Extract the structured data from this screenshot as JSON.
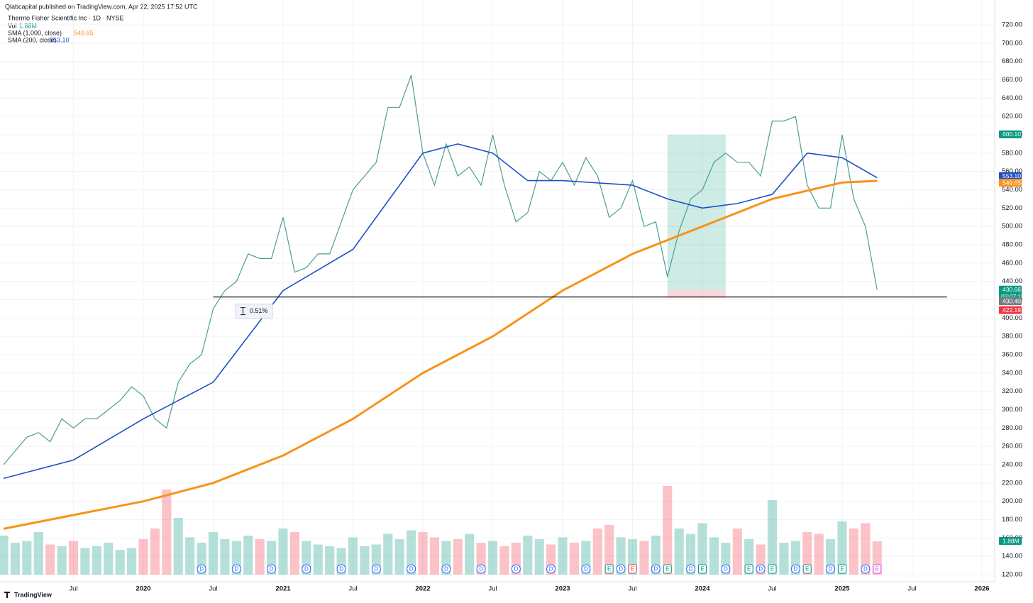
{
  "chart_data": {
    "type": "line",
    "published": "Qlabcapital published on TradingView.com, Apr 22, 2025 17:52 UTC",
    "title": "Thermo Fisher Scientific Inc · 1D · NYSE",
    "footer": "TradingView",
    "x": [
      "2019-01",
      "2019-02",
      "2019-03",
      "2019-04",
      "2019-05",
      "2019-06",
      "2019-07",
      "2019-08",
      "2019-09",
      "2019-10",
      "2019-11",
      "2019-12",
      "2020-01",
      "2020-02",
      "2020-03",
      "2020-04",
      "2020-05",
      "2020-06",
      "2020-07",
      "2020-08",
      "2020-09",
      "2020-10",
      "2020-11",
      "2020-12",
      "2021-01",
      "2021-02",
      "2021-03",
      "2021-04",
      "2021-05",
      "2021-06",
      "2021-07",
      "2021-08",
      "2021-09",
      "2021-10",
      "2021-11",
      "2021-12",
      "2022-01",
      "2022-02",
      "2022-03",
      "2022-04",
      "2022-05",
      "2022-06",
      "2022-07",
      "2022-08",
      "2022-09",
      "2022-10",
      "2022-11",
      "2022-12",
      "2023-01",
      "2023-02",
      "2023-03",
      "2023-04",
      "2023-05",
      "2023-06",
      "2023-07",
      "2023-08",
      "2023-09",
      "2023-10",
      "2023-11",
      "2023-12",
      "2024-01",
      "2024-02",
      "2024-03",
      "2024-04",
      "2024-05",
      "2024-06",
      "2024-07",
      "2024-08",
      "2024-09",
      "2024-10",
      "2024-11",
      "2024-12",
      "2025-01",
      "2025-02",
      "2025-03",
      "2025-04"
    ],
    "series": [
      {
        "name": "Thermo Fisher Scientific Inc · 1D · NYSE",
        "color": "#4a9e92",
        "values": [
          240,
          255,
          270,
          275,
          265,
          290,
          280,
          290,
          290,
          300,
          310,
          325,
          315,
          290,
          280,
          330,
          350,
          360,
          410,
          430,
          440,
          470,
          465,
          465,
          510,
          450,
          455,
          470,
          470,
          505,
          540,
          555,
          570,
          630,
          630,
          665,
          580,
          545,
          590,
          555,
          565,
          545,
          600,
          545,
          505,
          515,
          560,
          550,
          570,
          545,
          575,
          555,
          510,
          520,
          550,
          500,
          505,
          445,
          495,
          530,
          540,
          570,
          580,
          570,
          570,
          555,
          615,
          615,
          620,
          545,
          520,
          520,
          600,
          530,
          500,
          430.66
        ]
      },
      {
        "name": "SMA (1,000, close)",
        "color": "#f7931a",
        "price_label": "549.65",
        "x": [
          "2019-01",
          "2019-07",
          "2020-01",
          "2020-07",
          "2021-01",
          "2021-07",
          "2022-01",
          "2022-07",
          "2023-01",
          "2023-07",
          "2024-01",
          "2024-07",
          "2025-01",
          "2025-04"
        ],
        "values": [
          170,
          185,
          200,
          220,
          250,
          290,
          340,
          380,
          430,
          470,
          500,
          530,
          548,
          549.65
        ]
      },
      {
        "name": "SMA (200, close)",
        "color": "#1e4fc7",
        "price_label": "553.10",
        "x": [
          "2019-01",
          "2019-07",
          "2020-01",
          "2020-07",
          "2021-01",
          "2021-07",
          "2022-01",
          "2022-04",
          "2022-07",
          "2022-10",
          "2023-01",
          "2023-07",
          "2023-10",
          "2024-01",
          "2024-04",
          "2024-07",
          "2024-10",
          "2025-01",
          "2025-04"
        ],
        "values": [
          225,
          245,
          290,
          330,
          430,
          475,
          580,
          590,
          580,
          550,
          550,
          545,
          530,
          520,
          525,
          535,
          580,
          575,
          553.1
        ]
      }
    ],
    "volume": {
      "name": "Vol",
      "label": "1.88M",
      "values": [
        2.2,
        1.8,
        1.9,
        2.4,
        1.7,
        1.6,
        1.9,
        1.5,
        1.6,
        1.8,
        1.4,
        1.5,
        2.0,
        2.6,
        4.8,
        3.2,
        2.1,
        1.8,
        2.4,
        2.0,
        1.9,
        2.2,
        2.0,
        1.9,
        2.6,
        2.4,
        1.9,
        1.7,
        1.6,
        1.5,
        2.1,
        1.6,
        1.7,
        2.3,
        2.0,
        2.5,
        2.4,
        2.1,
        1.9,
        2.0,
        2.3,
        1.8,
        1.9,
        1.6,
        1.8,
        2.2,
        2.0,
        1.7,
        2.1,
        1.8,
        1.9,
        2.6,
        2.8,
        2.1,
        2.0,
        1.9,
        2.2,
        5.0,
        2.6,
        2.3,
        2.9,
        2.1,
        1.8,
        2.6,
        2.0,
        1.7,
        4.2,
        1.8,
        1.9,
        2.4,
        2.3,
        2.0,
        3.0,
        2.6,
        2.9,
        1.88
      ]
    },
    "current_countdown": "02:07:19",
    "position": {
      "start": "2023-10",
      "end": "2024-03",
      "entry": 430.4,
      "entry_label": "430.40",
      "target": 600.1,
      "target_label": "600.10",
      "stop": 422.19,
      "stop_label": "422.19"
    },
    "support_line": {
      "value": 423,
      "start": "2020-07",
      "end": "2025-10"
    },
    "measure": {
      "date": "2020-08",
      "label": "0.51%"
    },
    "events": [
      {
        "date": "2020-06",
        "label": "D",
        "color": "#2962ff"
      },
      {
        "date": "2020-09",
        "label": "D",
        "color": "#2962ff"
      },
      {
        "date": "2020-12",
        "label": "D",
        "color": "#2962ff"
      },
      {
        "date": "2021-03",
        "label": "D",
        "color": "#2962ff"
      },
      {
        "date": "2021-06",
        "label": "D",
        "color": "#2962ff"
      },
      {
        "date": "2021-09",
        "label": "D",
        "color": "#2962ff"
      },
      {
        "date": "2021-12",
        "label": "D",
        "color": "#2962ff"
      },
      {
        "date": "2022-03",
        "label": "D",
        "color": "#2962ff"
      },
      {
        "date": "2022-06",
        "label": "D",
        "color": "#2962ff"
      },
      {
        "date": "2022-09",
        "label": "D",
        "color": "#2962ff"
      },
      {
        "date": "2022-12",
        "label": "D",
        "color": "#2962ff"
      },
      {
        "date": "2023-03",
        "label": "D",
        "color": "#2962ff"
      },
      {
        "date": "2023-05",
        "label": "E",
        "color": "#089981"
      },
      {
        "date": "2023-06",
        "label": "D",
        "color": "#2962ff"
      },
      {
        "date": "2023-07",
        "label": "E",
        "color": "#f23645"
      },
      {
        "date": "2023-09",
        "label": "D",
        "color": "#2962ff"
      },
      {
        "date": "2023-10",
        "label": "E",
        "color": "#089981"
      },
      {
        "date": "2023-12",
        "label": "D",
        "color": "#2962ff"
      },
      {
        "date": "2024-01",
        "label": "E",
        "color": "#089981"
      },
      {
        "date": "2024-03",
        "label": "D",
        "color": "#2962ff"
      },
      {
        "date": "2024-05",
        "label": "E",
        "color": "#089981"
      },
      {
        "date": "2024-06",
        "label": "D",
        "color": "#2962ff"
      },
      {
        "date": "2024-07",
        "label": "E",
        "color": "#089981"
      },
      {
        "date": "2024-09",
        "label": "D",
        "color": "#2962ff"
      },
      {
        "date": "2024-10",
        "label": "E",
        "color": "#089981"
      },
      {
        "date": "2024-12",
        "label": "D",
        "color": "#2962ff"
      },
      {
        "date": "2025-01",
        "label": "E",
        "color": "#089981"
      },
      {
        "date": "2025-03",
        "label": "D",
        "color": "#2962ff"
      },
      {
        "date": "2025-04",
        "label": "E",
        "color": "#e040fb"
      }
    ],
    "xlim": [
      "2019-01",
      "2026-02"
    ],
    "xticks": [
      {
        "value": "2019-07",
        "label": "Jul"
      },
      {
        "value": "2020-01",
        "label": "2020"
      },
      {
        "value": "2020-07",
        "label": "Jul"
      },
      {
        "value": "2021-01",
        "label": "2021"
      },
      {
        "value": "2021-07",
        "label": "Jul"
      },
      {
        "value": "2022-01",
        "label": "2022"
      },
      {
        "value": "2022-07",
        "label": "Jul"
      },
      {
        "value": "2023-01",
        "label": "2023"
      },
      {
        "value": "2023-07",
        "label": "Jul"
      },
      {
        "value": "2024-01",
        "label": "2024"
      },
      {
        "value": "2024-07",
        "label": "Jul"
      },
      {
        "value": "2025-01",
        "label": "2025"
      },
      {
        "value": "2025-07",
        "label": "Jul"
      },
      {
        "value": "2026-01",
        "label": "2026"
      }
    ],
    "ylim": [
      120,
      720
    ],
    "yticks": [
      {
        "value": 120,
        "label": "120.00"
      },
      {
        "value": 140,
        "label": "140.00"
      },
      {
        "value": 160,
        "label": "160.00"
      },
      {
        "value": 180,
        "label": "180.00"
      },
      {
        "value": 200,
        "label": "200.00"
      },
      {
        "value": 220,
        "label": "220.00"
      },
      {
        "value": 240,
        "label": "240.00"
      },
      {
        "value": 260,
        "label": "260.00"
      },
      {
        "value": 280,
        "label": "280.00"
      },
      {
        "value": 300,
        "label": "300.00"
      },
      {
        "value": 320,
        "label": "320.00"
      },
      {
        "value": 340,
        "label": "340.00"
      },
      {
        "value": 360,
        "label": "360.00"
      },
      {
        "value": 380,
        "label": "380.00"
      },
      {
        "value": 400,
        "label": "400.00"
      },
      {
        "value": 420,
        "label": "420.00"
      },
      {
        "value": 440,
        "label": "440.00"
      },
      {
        "value": 460,
        "label": "460.00"
      },
      {
        "value": 480,
        "label": "480.00"
      },
      {
        "value": 500,
        "label": "500.00"
      },
      {
        "value": 520,
        "label": "520.00"
      },
      {
        "value": 540,
        "label": "540.00"
      },
      {
        "value": 560,
        "label": "560.00"
      },
      {
        "value": 580,
        "label": "580.00"
      },
      {
        "value": 600,
        "label": "600.00"
      },
      {
        "value": 620,
        "label": "620.00"
      },
      {
        "value": 640,
        "label": "640.00"
      },
      {
        "value": 660,
        "label": "660.00"
      },
      {
        "value": 680,
        "label": "680.00"
      },
      {
        "value": 700,
        "label": "700.00"
      },
      {
        "value": 720,
        "label": "720.00"
      }
    ],
    "grid": true
  }
}
